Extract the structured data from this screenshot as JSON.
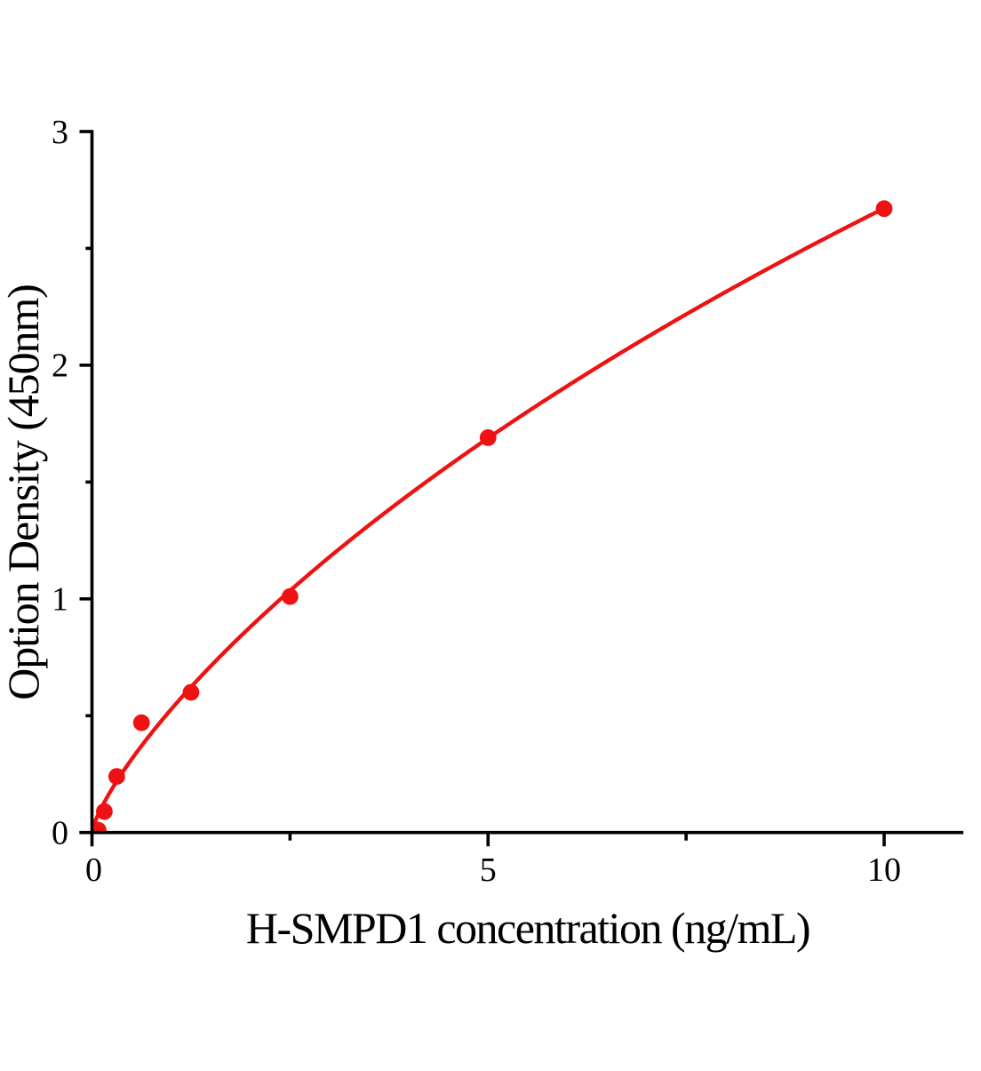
{
  "chart_data": {
    "type": "scatter",
    "title": "",
    "xlabel": "H-SMPD1 concentration（ng/mL)",
    "ylabel": "Option Density（450nm）",
    "x": [
      0.078,
      0.156,
      0.3125,
      0.625,
      1.25,
      2.5,
      5,
      10
    ],
    "y": [
      0.01,
      0.09,
      0.24,
      0.47,
      0.6,
      1.01,
      1.69,
      2.67
    ],
    "xlim": [
      0,
      11
    ],
    "ylim": [
      0,
      3
    ],
    "x_ticks": {
      "major": [
        0,
        5,
        10
      ],
      "minor": [
        2.5,
        7.5
      ],
      "labels": [
        "0",
        "5",
        "10"
      ]
    },
    "y_ticks": {
      "major": [
        0,
        1,
        2,
        3
      ],
      "minor": [
        0.5,
        1.5,
        2.5
      ],
      "labels": [
        "0",
        "1",
        "2",
        "3"
      ]
    },
    "grid": false,
    "legend_position": "none",
    "marker_color": "#ee1212",
    "line_color": "#ee1212",
    "axis_color": "#000000",
    "fit_curve": {
      "model": "4PL",
      "params": {
        "a": 0.00253,
        "d": 14.5288,
        "c": 67.919,
        "b": 0.77841
      },
      "x_range": [
        0.002,
        10
      ]
    }
  }
}
